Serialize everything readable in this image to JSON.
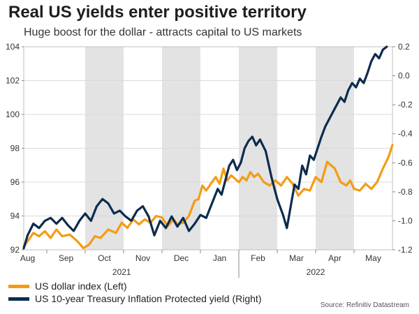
{
  "title": "Real US yields enter positive territory",
  "subtitle": "Huge boost for the dollar - attracts capital to US markets",
  "source": "Source: Refinitiv Datastream",
  "colors": {
    "dxy": "#f39c12",
    "tips": "#0d2b4e",
    "shade": "#e3e3e3"
  },
  "chart_data": {
    "type": "line",
    "x_axis": {
      "months": [
        "Aug",
        "Sep",
        "Oct",
        "Nov",
        "Dec",
        "Jan",
        "Feb",
        "Mar",
        "Apr",
        "May"
      ],
      "years": [
        "2021",
        "2022"
      ],
      "shaded_months": [
        "Sep",
        "Nov",
        "Jan",
        "Mar",
        "May"
      ]
    },
    "left_axis": {
      "min": 92,
      "max": 104,
      "ticks": [
        "92",
        "94",
        "96",
        "98",
        "100",
        "102",
        "104"
      ]
    },
    "right_axis": {
      "min": -1.2,
      "max": 0.2,
      "ticks": [
        "-1.2",
        "-1.0",
        "-0.8",
        "-0.6",
        "-0.4",
        "-0.2",
        "0.0",
        "0.2"
      ]
    },
    "x_range": [
      0,
      9.6
    ],
    "series": [
      {
        "name": "US dollar index (Left)",
        "axis": "left",
        "points": [
          [
            0,
            92.2
          ],
          [
            0.1,
            92.5
          ],
          [
            0.25,
            93.0
          ],
          [
            0.4,
            92.8
          ],
          [
            0.55,
            93.1
          ],
          [
            0.7,
            92.7
          ],
          [
            0.85,
            93.2
          ],
          [
            1.0,
            92.8
          ],
          [
            1.2,
            92.9
          ],
          [
            1.4,
            92.5
          ],
          [
            1.55,
            92.1
          ],
          [
            1.7,
            92.3
          ],
          [
            1.85,
            92.8
          ],
          [
            2.0,
            92.7
          ],
          [
            2.2,
            93.2
          ],
          [
            2.4,
            93.0
          ],
          [
            2.55,
            93.6
          ],
          [
            2.7,
            93.3
          ],
          [
            2.85,
            93.8
          ],
          [
            3.0,
            93.5
          ],
          [
            3.15,
            93.8
          ],
          [
            3.3,
            93.6
          ],
          [
            3.45,
            94.0
          ],
          [
            3.6,
            93.9
          ],
          [
            3.75,
            93.4
          ],
          [
            3.9,
            93.8
          ],
          [
            4.0,
            93.5
          ],
          [
            4.15,
            93.6
          ],
          [
            4.3,
            94.0
          ],
          [
            4.45,
            94.9
          ],
          [
            4.55,
            95.0
          ],
          [
            4.65,
            95.8
          ],
          [
            4.75,
            95.5
          ],
          [
            4.9,
            96.0
          ],
          [
            5.0,
            96.3
          ],
          [
            5.1,
            95.9
          ],
          [
            5.2,
            96.8
          ],
          [
            5.3,
            96.1
          ],
          [
            5.4,
            96.4
          ],
          [
            5.5,
            96.2
          ],
          [
            5.6,
            96.0
          ],
          [
            5.7,
            96.3
          ],
          [
            5.8,
            96.1
          ],
          [
            5.9,
            96.6
          ],
          [
            6.0,
            96.3
          ],
          [
            6.1,
            96.5
          ],
          [
            6.25,
            96.0
          ],
          [
            6.4,
            95.8
          ],
          [
            6.55,
            96.1
          ],
          [
            6.7,
            95.8
          ],
          [
            6.85,
            96.3
          ],
          [
            7.0,
            95.9
          ],
          [
            7.15,
            95.2
          ],
          [
            7.3,
            95.6
          ],
          [
            7.45,
            95.5
          ],
          [
            7.6,
            96.3
          ],
          [
            7.75,
            96.0
          ],
          [
            7.9,
            97.2
          ],
          [
            8.0,
            97.0
          ],
          [
            8.1,
            96.8
          ],
          [
            8.25,
            96.0
          ],
          [
            8.4,
            95.8
          ],
          [
            8.5,
            96.1
          ],
          [
            8.6,
            95.6
          ],
          [
            8.75,
            95.5
          ],
          [
            8.9,
            95.9
          ],
          [
            9.05,
            95.6
          ],
          [
            9.2,
            96.0
          ],
          [
            9.35,
            96.8
          ],
          [
            9.5,
            97.5
          ],
          [
            9.6,
            98.2
          ]
        ]
      },
      {
        "name": "US 10-year Treasury Inflation Protected yield (Right)",
        "axis": "right",
        "points": [
          [
            0,
            -1.19
          ],
          [
            0.1,
            -1.1
          ],
          [
            0.25,
            -1.02
          ],
          [
            0.4,
            -1.05
          ],
          [
            0.55,
            -1.0
          ],
          [
            0.7,
            -0.98
          ],
          [
            0.85,
            -1.02
          ],
          [
            1.0,
            -0.98
          ],
          [
            1.15,
            -1.03
          ],
          [
            1.3,
            -1.07
          ],
          [
            1.45,
            -1.0
          ],
          [
            1.6,
            -0.95
          ],
          [
            1.75,
            -1.0
          ],
          [
            1.9,
            -0.9
          ],
          [
            2.05,
            -0.85
          ],
          [
            2.2,
            -0.88
          ],
          [
            2.35,
            -0.95
          ],
          [
            2.5,
            -0.93
          ],
          [
            2.65,
            -0.97
          ],
          [
            2.8,
            -1.0
          ],
          [
            2.95,
            -0.93
          ],
          [
            3.1,
            -0.9
          ],
          [
            3.25,
            -0.97
          ],
          [
            3.4,
            -1.1
          ],
          [
            3.55,
            -1.0
          ],
          [
            3.7,
            -1.05
          ],
          [
            3.85,
            -0.97
          ],
          [
            4.0,
            -1.04
          ],
          [
            4.15,
            -0.98
          ],
          [
            4.3,
            -1.07
          ],
          [
            4.45,
            -1.02
          ],
          [
            4.6,
            -0.96
          ],
          [
            4.75,
            -0.98
          ],
          [
            4.9,
            -0.88
          ],
          [
            5.05,
            -0.78
          ],
          [
            5.15,
            -0.82
          ],
          [
            5.25,
            -0.72
          ],
          [
            5.35,
            -0.62
          ],
          [
            5.45,
            -0.58
          ],
          [
            5.55,
            -0.65
          ],
          [
            5.65,
            -0.6
          ],
          [
            5.75,
            -0.5
          ],
          [
            5.85,
            -0.45
          ],
          [
            5.95,
            -0.42
          ],
          [
            6.05,
            -0.48
          ],
          [
            6.15,
            -0.44
          ],
          [
            6.3,
            -0.52
          ],
          [
            6.45,
            -0.7
          ],
          [
            6.6,
            -0.85
          ],
          [
            6.75,
            -0.96
          ],
          [
            6.85,
            -1.05
          ],
          [
            6.95,
            -0.9
          ],
          [
            7.05,
            -0.75
          ],
          [
            7.15,
            -0.78
          ],
          [
            7.25,
            -0.62
          ],
          [
            7.35,
            -0.68
          ],
          [
            7.45,
            -0.55
          ],
          [
            7.55,
            -0.58
          ],
          [
            7.65,
            -0.5
          ],
          [
            7.75,
            -0.42
          ],
          [
            7.85,
            -0.35
          ],
          [
            7.95,
            -0.3
          ],
          [
            8.05,
            -0.25
          ],
          [
            8.15,
            -0.2
          ],
          [
            8.25,
            -0.15
          ],
          [
            8.35,
            -0.18
          ],
          [
            8.45,
            -0.1
          ],
          [
            8.55,
            -0.05
          ],
          [
            8.65,
            -0.08
          ],
          [
            8.75,
            -0.02
          ],
          [
            8.85,
            -0.05
          ],
          [
            8.95,
            0.02
          ],
          [
            9.05,
            0.1
          ],
          [
            9.15,
            0.15
          ],
          [
            9.25,
            0.12
          ],
          [
            9.35,
            0.18
          ],
          [
            9.45,
            0.2
          ]
        ]
      }
    ]
  }
}
